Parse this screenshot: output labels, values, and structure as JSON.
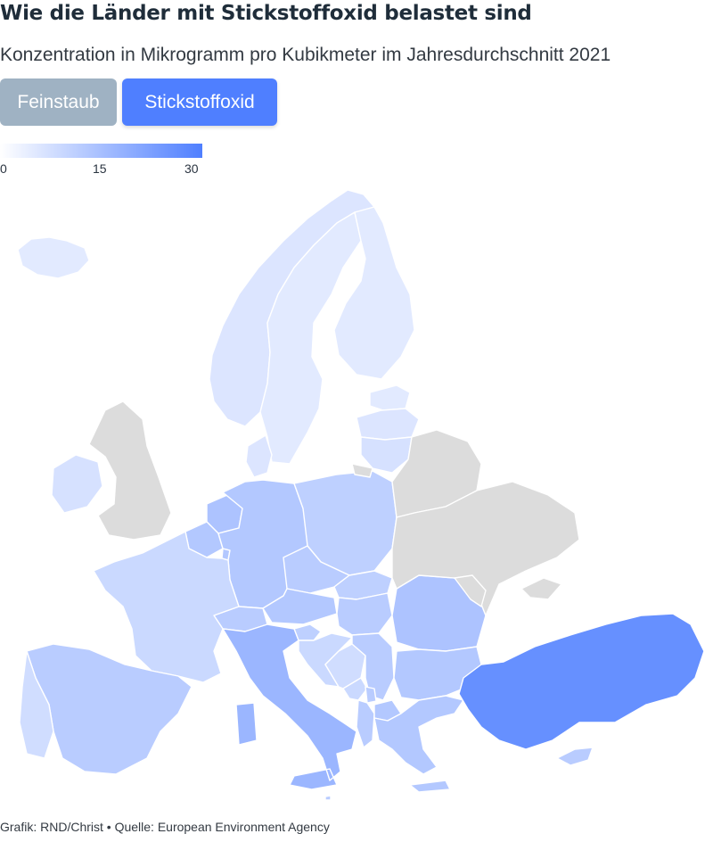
{
  "header": {
    "title": "Wie die Länder mit Stickstoffoxid belastet sind",
    "subtitle": "Konzentration in Mikrogramm pro Kubikmeter im Jahresdurchschnitt 2021"
  },
  "toggles": {
    "feinstaub_label": "Feinstaub",
    "stickstoffoxid_label": "Stickstoffoxid",
    "active": "Stickstoffoxid"
  },
  "legend": {
    "min_label": "0",
    "mid_label": "15",
    "max_label": "30",
    "range": [
      0,
      30
    ],
    "color_low": "#ffffff",
    "color_high": "#4f7fff"
  },
  "map": {
    "no_data_color": "#dcdcdc",
    "countries": [
      {
        "id": "iceland",
        "value": 5
      },
      {
        "id": "norway",
        "value": 6
      },
      {
        "id": "sweden",
        "value": 5
      },
      {
        "id": "finland",
        "value": 5
      },
      {
        "id": "estonia",
        "value": 5
      },
      {
        "id": "latvia",
        "value": 6
      },
      {
        "id": "lithuania",
        "value": 7
      },
      {
        "id": "denmark",
        "value": 6
      },
      {
        "id": "ireland",
        "value": 7
      },
      {
        "id": "uk",
        "value": null
      },
      {
        "id": "netherlands",
        "value": 14
      },
      {
        "id": "belgium",
        "value": 13
      },
      {
        "id": "luxembourg",
        "value": 13
      },
      {
        "id": "germany",
        "value": 13
      },
      {
        "id": "poland",
        "value": 11
      },
      {
        "id": "czechia",
        "value": 12
      },
      {
        "id": "slovakia",
        "value": 11
      },
      {
        "id": "austria",
        "value": 13
      },
      {
        "id": "switzerland",
        "value": 12
      },
      {
        "id": "hungary",
        "value": 12
      },
      {
        "id": "slovenia",
        "value": 11
      },
      {
        "id": "croatia",
        "value": 9
      },
      {
        "id": "bosnia",
        "value": 8
      },
      {
        "id": "serbia",
        "value": 12
      },
      {
        "id": "montenegro",
        "value": 9
      },
      {
        "id": "albania",
        "value": 12
      },
      {
        "id": "north-macedonia",
        "value": 13
      },
      {
        "id": "kosovo",
        "value": 12
      },
      {
        "id": "romania",
        "value": 14
      },
      {
        "id": "bulgaria",
        "value": 13
      },
      {
        "id": "greece",
        "value": 13
      },
      {
        "id": "turkey",
        "value": 26
      },
      {
        "id": "cyprus",
        "value": 12
      },
      {
        "id": "france",
        "value": 9
      },
      {
        "id": "spain",
        "value": 12
      },
      {
        "id": "portugal",
        "value": 8
      },
      {
        "id": "italy",
        "value": 17
      },
      {
        "id": "malta",
        "value": 12
      },
      {
        "id": "belarus",
        "value": null
      },
      {
        "id": "ukraine",
        "value": null
      },
      {
        "id": "moldova",
        "value": null
      },
      {
        "id": "russia-kaliningrad",
        "value": null
      }
    ]
  },
  "footer": {
    "credit": "Grafik: RND/Christ • Quelle: European Environment Agency"
  }
}
